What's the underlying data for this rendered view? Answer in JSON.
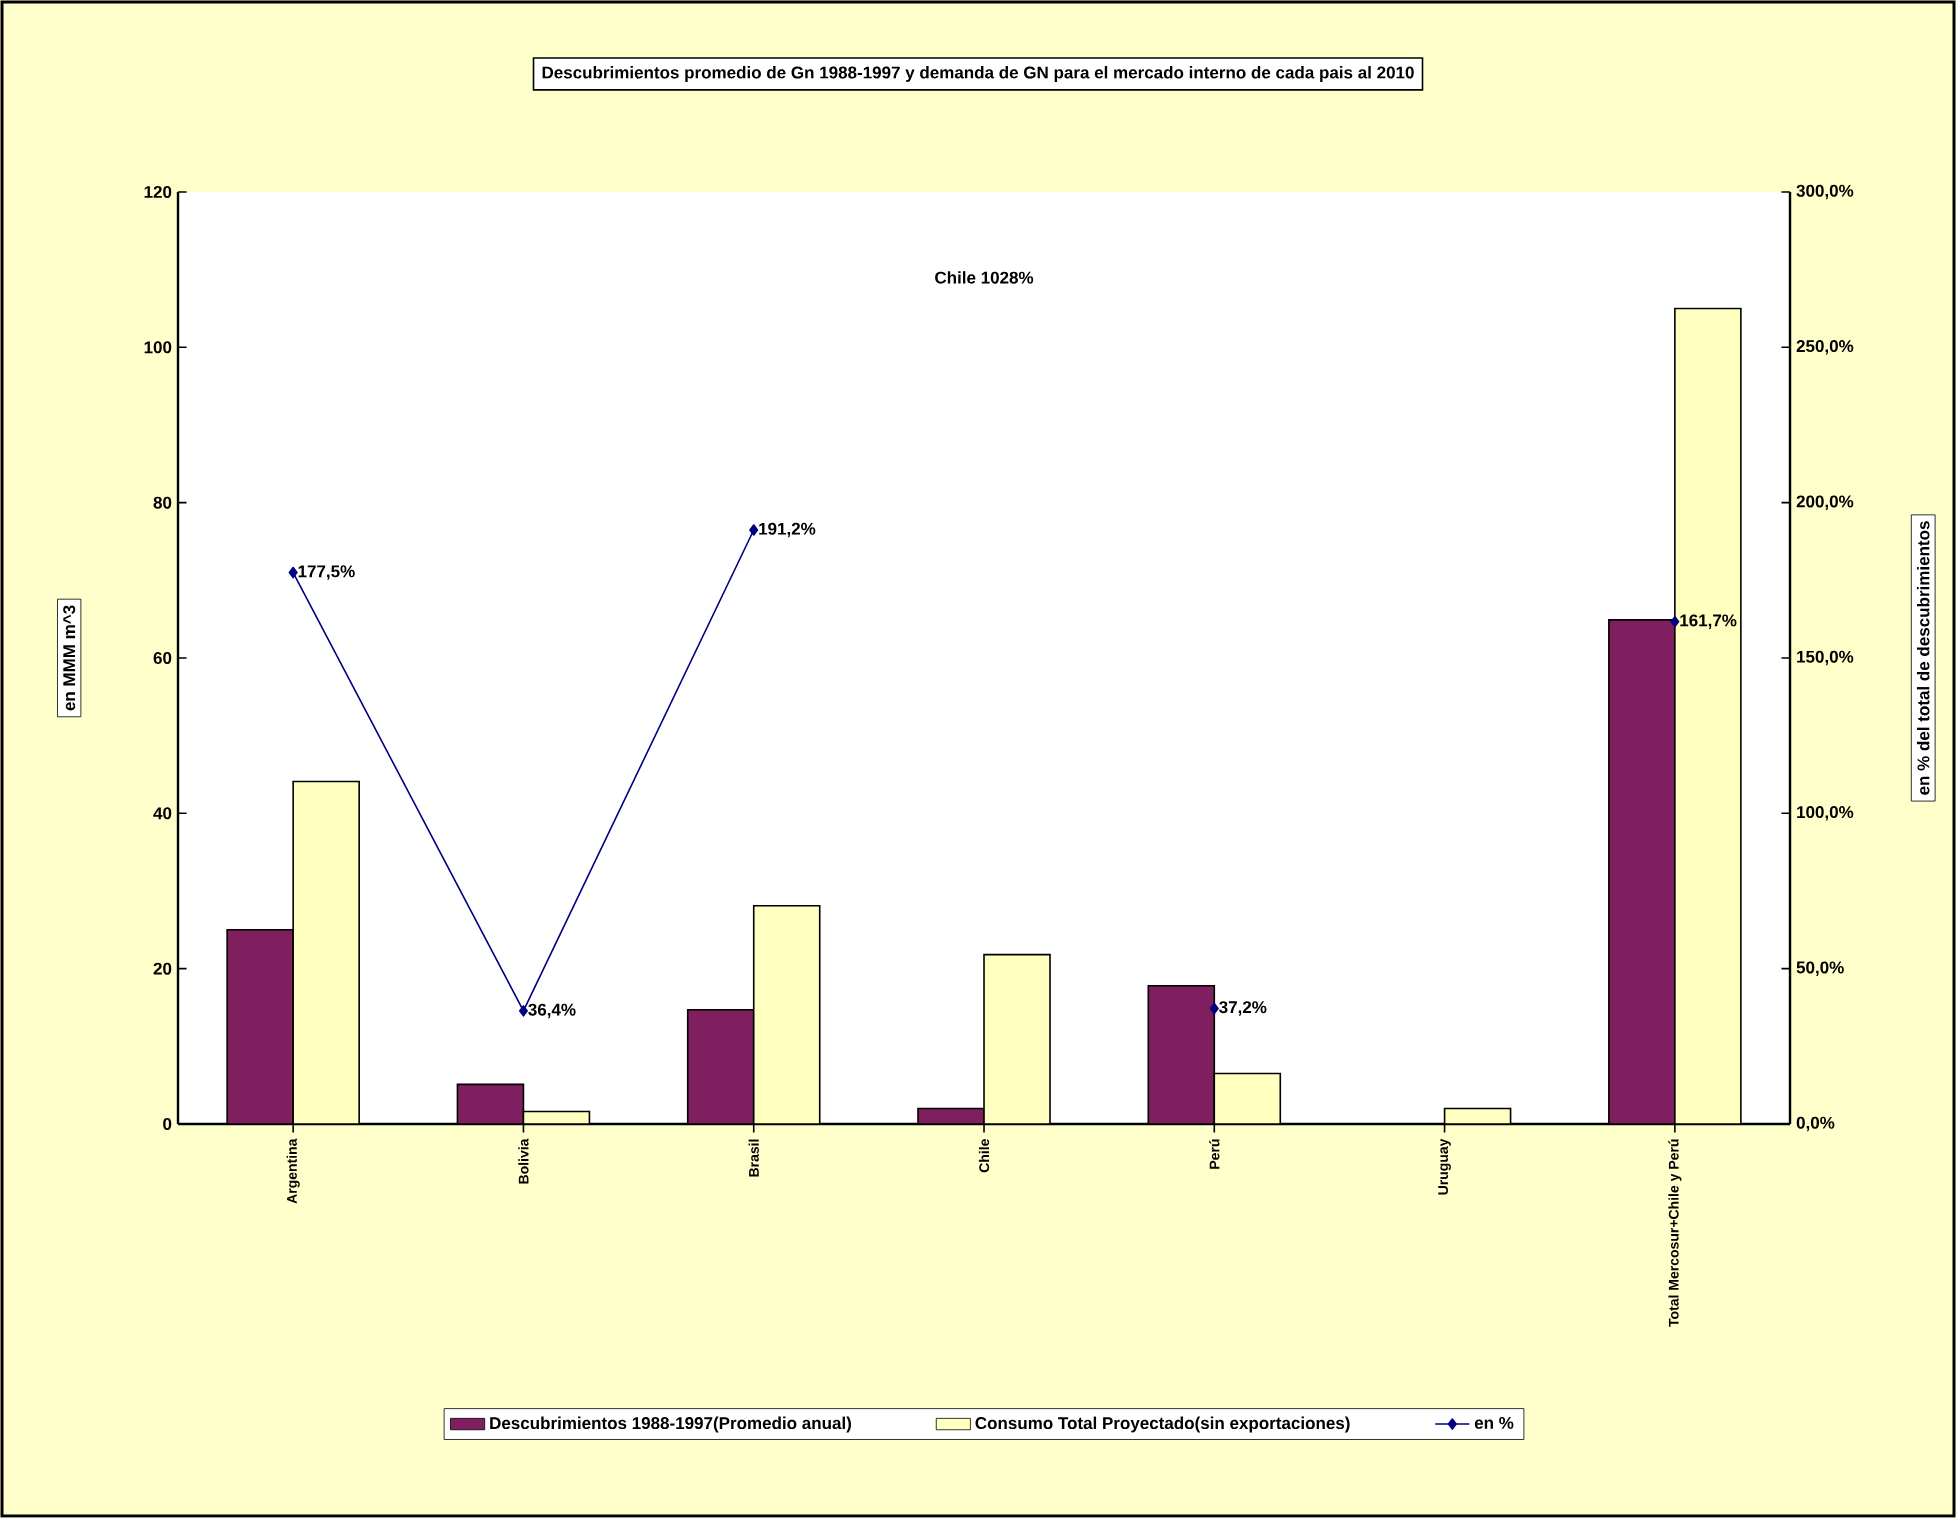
{
  "chart_data": {
    "type": "bar",
    "title": "Descubrimientos promedio de Gn 1988-1997 y demanda de GN para el mercado interno de cada pais al 2010",
    "ylabel": "en MMM m^3",
    "y2label": "en % del total de descubrimientos",
    "categories": [
      "Argentina",
      "Bolivia",
      "Brasil",
      "Chile",
      "Perú",
      "Uruguay",
      "Total Mercosur+Chile y Perú"
    ],
    "series": [
      {
        "name": "Descubrimientos 1988-1997(Promedio anual)",
        "color": "#7f1f5f",
        "values": [
          25,
          5.1,
          14.7,
          2.0,
          17.8,
          0,
          64.9
        ]
      },
      {
        "name": "Consumo Total Proyectado(sin exportaciones)",
        "color": "#ffffc0",
        "values": [
          44.1,
          1.6,
          28.1,
          21.8,
          6.5,
          2.0,
          105.0
        ]
      },
      {
        "name": "en %",
        "type": "line",
        "axis": "y2",
        "color": "#000080",
        "values": [
          177.5,
          36.4,
          191.2,
          null,
          37.2,
          null,
          161.7
        ],
        "value_labels": [
          "177,5%",
          "36,4%",
          "191,2%",
          null,
          "37,2%",
          null,
          "161,7%"
        ]
      }
    ],
    "ylim": [
      0,
      120
    ],
    "yticks": [
      0,
      20,
      40,
      60,
      80,
      100,
      120
    ],
    "y2lim": [
      0,
      300
    ],
    "y2ticks": [
      {
        "value": 0,
        "label": "0,0%"
      },
      {
        "value": 50,
        "label": "50,0%"
      },
      {
        "value": 100,
        "label": "100,0%"
      },
      {
        "value": 150,
        "label": "150,0%"
      },
      {
        "value": 200,
        "label": "200,0%"
      },
      {
        "value": 250,
        "label": "250,0%"
      },
      {
        "value": 300,
        "label": "300,0%"
      }
    ],
    "annotations": [
      "Chile 1028%"
    ],
    "marker": "diamond",
    "line_style": "solid",
    "legend": "bottom"
  }
}
